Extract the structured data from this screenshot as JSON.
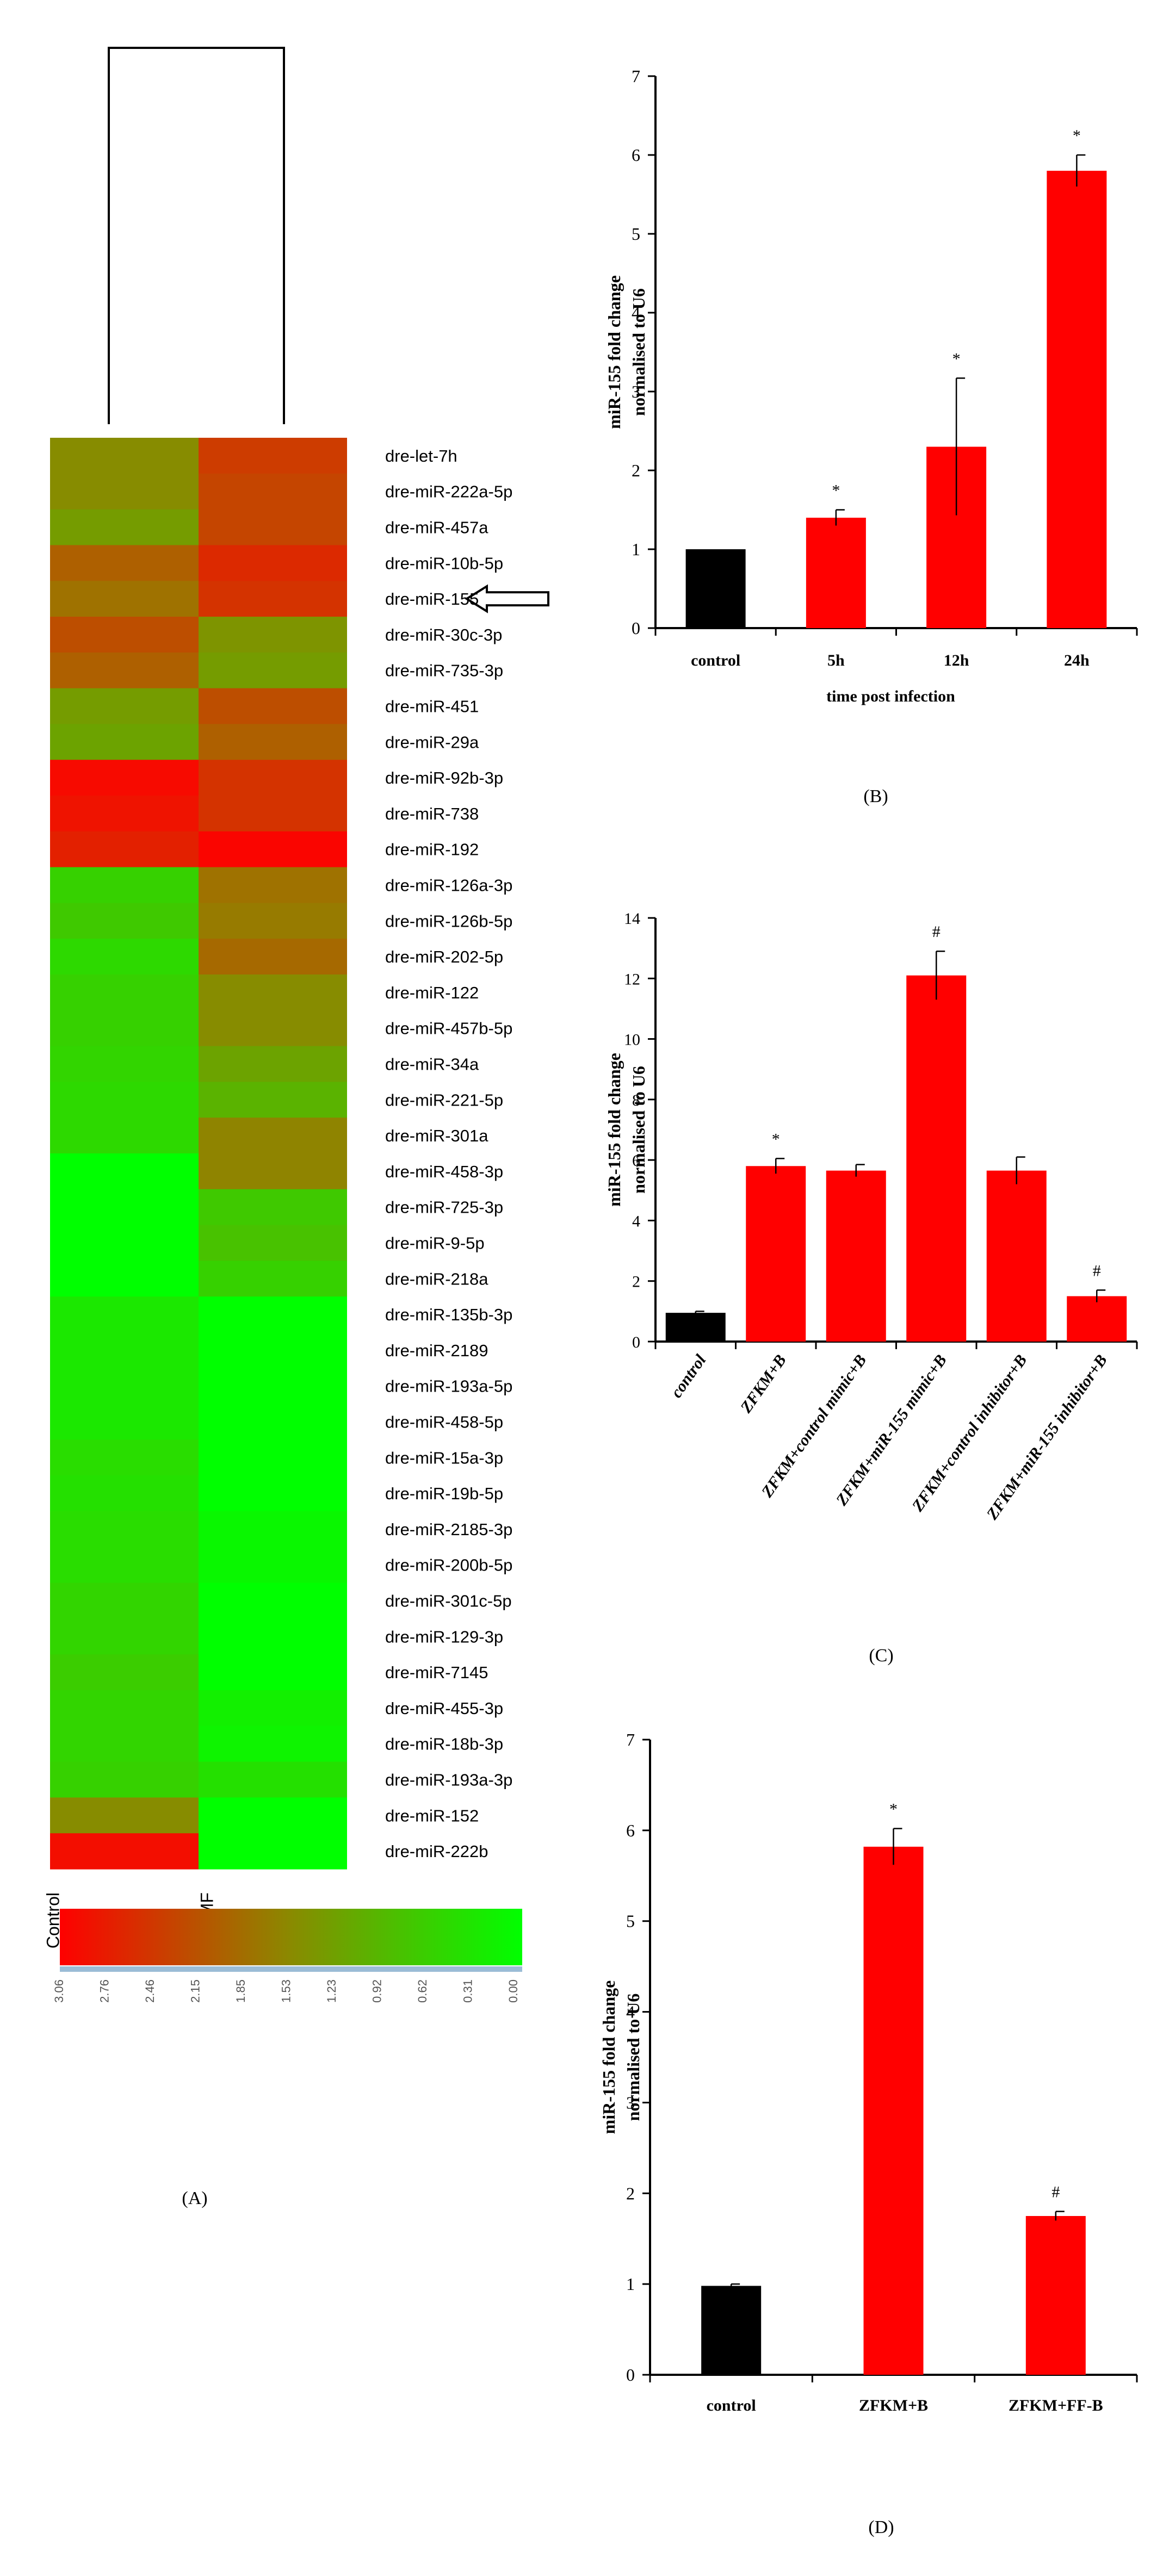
{
  "heatmap": {
    "label": "(A)",
    "columns": [
      "Control",
      "MF"
    ],
    "rows": [
      {
        "name": "dre-let-7h",
        "values": [
          1.5,
          2.4
        ]
      },
      {
        "name": "dre-miR-222a-5p",
        "values": [
          1.5,
          2.3
        ]
      },
      {
        "name": "dre-miR-457a",
        "values": [
          1.3,
          2.3
        ]
      },
      {
        "name": "dre-miR-10b-5p",
        "values": [
          2.0,
          2.6
        ]
      },
      {
        "name": "dre-miR-155",
        "values": [
          1.8,
          2.5
        ]
      },
      {
        "name": "dre-miR-30c-3p",
        "values": [
          2.2,
          1.4
        ]
      },
      {
        "name": "dre-miR-735-3p",
        "values": [
          2.0,
          1.3
        ]
      },
      {
        "name": "dre-miR-451",
        "values": [
          1.3,
          2.2
        ]
      },
      {
        "name": "dre-miR-29a",
        "values": [
          1.2,
          2.0
        ]
      },
      {
        "name": "dre-miR-92b-3p",
        "values": [
          2.95,
          2.5
        ]
      },
      {
        "name": "dre-miR-738",
        "values": [
          2.85,
          2.5
        ]
      },
      {
        "name": "dre-miR-192",
        "values": [
          2.7,
          3.0
        ]
      },
      {
        "name": "dre-miR-126a-3p",
        "values": [
          0.6,
          1.8
        ]
      },
      {
        "name": "dre-miR-126b-5p",
        "values": [
          0.7,
          1.7
        ]
      },
      {
        "name": "dre-miR-202-5p",
        "values": [
          0.5,
          1.9
        ]
      },
      {
        "name": "dre-miR-122",
        "values": [
          0.6,
          1.5
        ]
      },
      {
        "name": "dre-miR-457b-5p",
        "values": [
          0.6,
          1.5
        ]
      },
      {
        "name": "dre-miR-34a",
        "values": [
          0.55,
          1.2
        ]
      },
      {
        "name": "dre-miR-221-5p",
        "values": [
          0.5,
          1.0
        ]
      },
      {
        "name": "dre-miR-301a",
        "values": [
          0.5,
          1.6
        ]
      },
      {
        "name": "dre-miR-458-3p",
        "values": [
          0.0,
          1.6
        ]
      },
      {
        "name": "dre-miR-725-3p",
        "values": [
          0.0,
          0.7
        ]
      },
      {
        "name": "dre-miR-9-5p",
        "values": [
          0.0,
          0.8
        ]
      },
      {
        "name": "dre-miR-218a",
        "values": [
          0.0,
          0.6
        ]
      },
      {
        "name": "dre-miR-135b-3p",
        "values": [
          0.3,
          0.0
        ]
      },
      {
        "name": "dre-miR-2189",
        "values": [
          0.3,
          0.0
        ]
      },
      {
        "name": "dre-miR-193a-5p",
        "values": [
          0.3,
          0.0
        ]
      },
      {
        "name": "dre-miR-458-5p",
        "values": [
          0.3,
          0.0
        ]
      },
      {
        "name": "dre-miR-15a-3p",
        "values": [
          0.45,
          0.0
        ]
      },
      {
        "name": "dre-miR-19b-5p",
        "values": [
          0.4,
          0.0
        ]
      },
      {
        "name": "dre-miR-2185-3p",
        "values": [
          0.45,
          0.1
        ]
      },
      {
        "name": "dre-miR-200b-5p",
        "values": [
          0.45,
          0.1
        ]
      },
      {
        "name": "dre-miR-301c-5p",
        "values": [
          0.55,
          0.0
        ]
      },
      {
        "name": "dre-miR-129-3p",
        "values": [
          0.55,
          0.0
        ]
      },
      {
        "name": "dre-miR-7145",
        "values": [
          0.65,
          0.0
        ]
      },
      {
        "name": "dre-miR-455-3p",
        "values": [
          0.55,
          0.2
        ]
      },
      {
        "name": "dre-miR-18b-3p",
        "values": [
          0.55,
          0.15
        ]
      },
      {
        "name": "dre-miR-193a-3p",
        "values": [
          0.6,
          0.4
        ]
      },
      {
        "name": "dre-miR-152",
        "values": [
          1.5,
          0.0
        ]
      },
      {
        "name": "dre-miR-222b",
        "values": [
          2.9,
          0.0
        ]
      }
    ],
    "highlighted_row": "dre-miR-155",
    "scale_ticks": [
      "3.06",
      "2.76",
      "2.46",
      "2.15",
      "1.85",
      "1.53",
      "1.23",
      "0.92",
      "0.62",
      "0.31",
      "0.00"
    ],
    "colors": {
      "high": "#ff0000",
      "mid": "#8a8a00",
      "low": "#00ff00"
    }
  },
  "chart_data": [
    {
      "panel": "(B)",
      "type": "bar",
      "categories": [
        "control",
        "5h",
        "12h",
        "24h"
      ],
      "values": [
        1.0,
        1.4,
        2.3,
        5.8
      ],
      "errors": [
        0.0,
        0.1,
        0.87,
        0.2
      ],
      "markers": [
        "",
        "*",
        "*",
        "*"
      ],
      "bar_colors": [
        "#000000",
        "#ff0000",
        "#ff0000",
        "#ff0000"
      ],
      "ylabel_line1": "miR-155 fold change",
      "ylabel_line2": "normalised to U6",
      "xlabel": "time post infection",
      "yticks": [
        "0",
        "1",
        "2",
        "3",
        "4",
        "5",
        "6",
        "7"
      ],
      "ylim": [
        0,
        7
      ]
    },
    {
      "panel": "(C)",
      "type": "bar",
      "categories": [
        "control",
        "ZFKM+B",
        "ZFKM+control mimic+B",
        "ZFKM+miR-155 mimic+B",
        "ZFKM+control inhibitor+B",
        "ZFKM+miR-155 inhibitor+B"
      ],
      "values": [
        0.95,
        5.8,
        5.65,
        12.1,
        5.65,
        1.5
      ],
      "errors": [
        0.05,
        0.25,
        0.2,
        0.8,
        0.45,
        0.2
      ],
      "markers": [
        "",
        "*",
        "",
        "#",
        "",
        "#"
      ],
      "bar_colors": [
        "#000000",
        "#ff0000",
        "#ff0000",
        "#ff0000",
        "#ff0000",
        "#ff0000"
      ],
      "ylabel_line1": "miR-155 fold change",
      "ylabel_line2": "normalised to U6",
      "xlabel": "",
      "yticks": [
        "0",
        "2",
        "4",
        "6",
        "8",
        "10",
        "12",
        "14"
      ],
      "ylim": [
        0,
        14
      ]
    },
    {
      "panel": "(D)",
      "type": "bar",
      "categories": [
        "control",
        "ZFKM+B",
        "ZFKM+FF-B"
      ],
      "values": [
        0.98,
        5.82,
        1.75
      ],
      "errors": [
        0.02,
        0.2,
        0.05
      ],
      "markers": [
        "",
        "*",
        "#"
      ],
      "bar_colors": [
        "#000000",
        "#ff0000",
        "#ff0000"
      ],
      "ylabel_line1": "miR-155 fold change",
      "ylabel_line2": "normalised to U6",
      "xlabel": "",
      "yticks": [
        "0",
        "1",
        "2",
        "3",
        "4",
        "5",
        "6",
        "7"
      ],
      "ylim": [
        0,
        7
      ]
    }
  ]
}
